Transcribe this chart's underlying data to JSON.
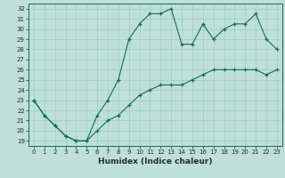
{
  "xlabel": "Humidex (Indice chaleur)",
  "bg_color": "#bde0d8",
  "line_color": "#1a6858",
  "grid_color": "#9dccc4",
  "xlim": [
    -0.5,
    23.5
  ],
  "ylim": [
    18.5,
    32.5
  ],
  "xticks": [
    0,
    1,
    2,
    3,
    4,
    5,
    6,
    7,
    8,
    9,
    10,
    11,
    12,
    13,
    14,
    15,
    16,
    17,
    18,
    19,
    20,
    21,
    22,
    23
  ],
  "yticks": [
    19,
    20,
    21,
    22,
    23,
    24,
    25,
    26,
    27,
    28,
    29,
    30,
    31,
    32
  ],
  "line1_x": [
    0,
    1,
    2,
    3,
    4,
    5,
    6,
    7,
    8,
    9,
    10,
    11,
    12,
    13,
    14,
    15,
    16,
    17,
    18,
    19,
    20,
    21,
    22,
    23
  ],
  "line1_y": [
    23,
    21.5,
    20.5,
    19.5,
    19.0,
    19.0,
    20.0,
    21.0,
    21.5,
    22.5,
    23.5,
    24.0,
    24.5,
    24.5,
    24.5,
    25.0,
    25.5,
    26.0,
    26.0,
    26.0,
    26.0,
    26.0,
    25.5,
    26.0
  ],
  "line2_x": [
    0,
    1,
    2,
    3,
    4,
    5,
    6,
    7,
    8,
    9,
    10,
    11,
    12,
    13,
    14,
    15,
    16,
    17,
    18,
    19,
    20,
    21,
    22,
    23
  ],
  "line2_y": [
    23,
    21.5,
    20.5,
    19.5,
    19.0,
    19.0,
    21.5,
    23.0,
    25.0,
    29.0,
    30.5,
    31.5,
    31.5,
    32.0,
    28.5,
    28.5,
    30.5,
    29.0,
    30.0,
    30.5,
    30.5,
    31.5,
    29.0,
    28.0
  ]
}
